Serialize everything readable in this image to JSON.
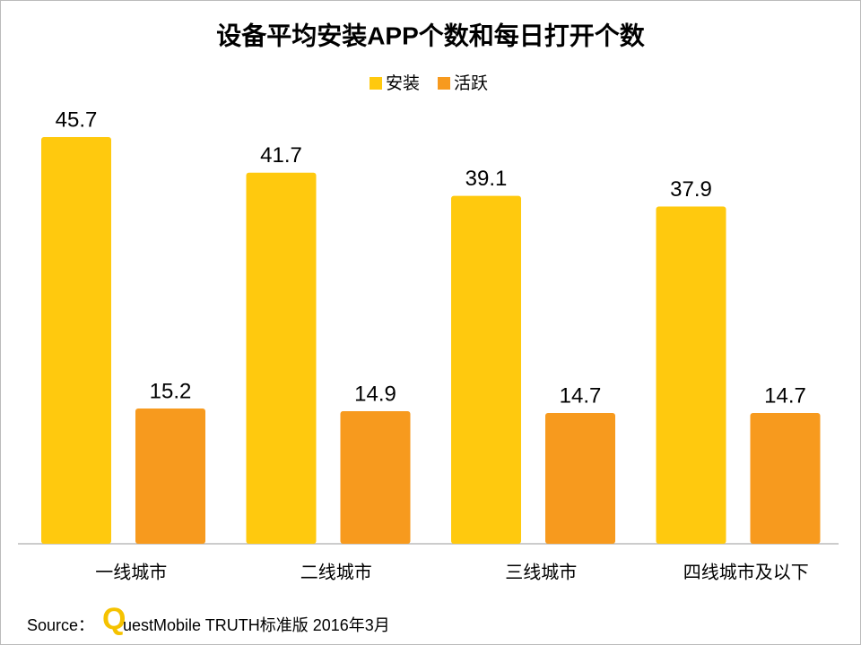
{
  "chart_data": {
    "type": "bar",
    "title": "设备平均安装APP个数和每日打开个数",
    "categories": [
      "一线城市",
      "二线城市",
      "三线城市",
      "四线城市及以下"
    ],
    "series": [
      {
        "name": "安装",
        "color": "#FFC90E",
        "values": [
          45.7,
          41.7,
          39.1,
          37.9
        ]
      },
      {
        "name": "活跃",
        "color": "#F79A1E",
        "values": [
          15.2,
          14.9,
          14.7,
          14.7
        ]
      }
    ],
    "legend": "top"
  },
  "source": {
    "prefix": "Source：",
    "logo_letter": "Q",
    "text": "uestMobile TRUTH标准版 2016年3月"
  }
}
